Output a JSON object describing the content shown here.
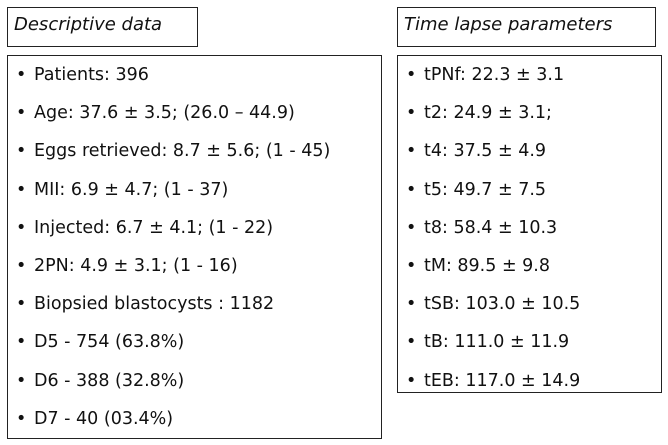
{
  "left": {
    "title": "Descriptive data",
    "items": [
      "Patients: 396",
      "Age: 37.6 ± 3.5; (26.0 – 44.9)",
      "Eggs retrieved: 8.7 ± 5.6; (1 - 45)",
      "MII: 6.9 ± 4.7; (1 - 37)",
      "Injected: 6.7 ± 4.1; (1 - 22)",
      "2PN: 4.9 ± 3.1; (1 - 16)",
      "Biopsied blastocysts : 1182",
      "D5 - 754 (63.8%)",
      "D6 - 388 (32.8%)",
      "D7 - 40 (03.4%)"
    ]
  },
  "right": {
    "title": "Time lapse parameters",
    "items": [
      "tPNf: 22.3 ± 3.1",
      "t2: 24.9 ± 3.1;",
      "t4: 37.5 ± 4.9",
      "t5: 49.7 ± 7.5",
      "t8: 58.4 ± 10.3",
      "tM: 89.5 ± 9.8",
      "tSB: 103.0 ± 10.5",
      "tB: 111.0 ± 11.9",
      "tEB: 117.0 ± 14.9"
    ]
  }
}
